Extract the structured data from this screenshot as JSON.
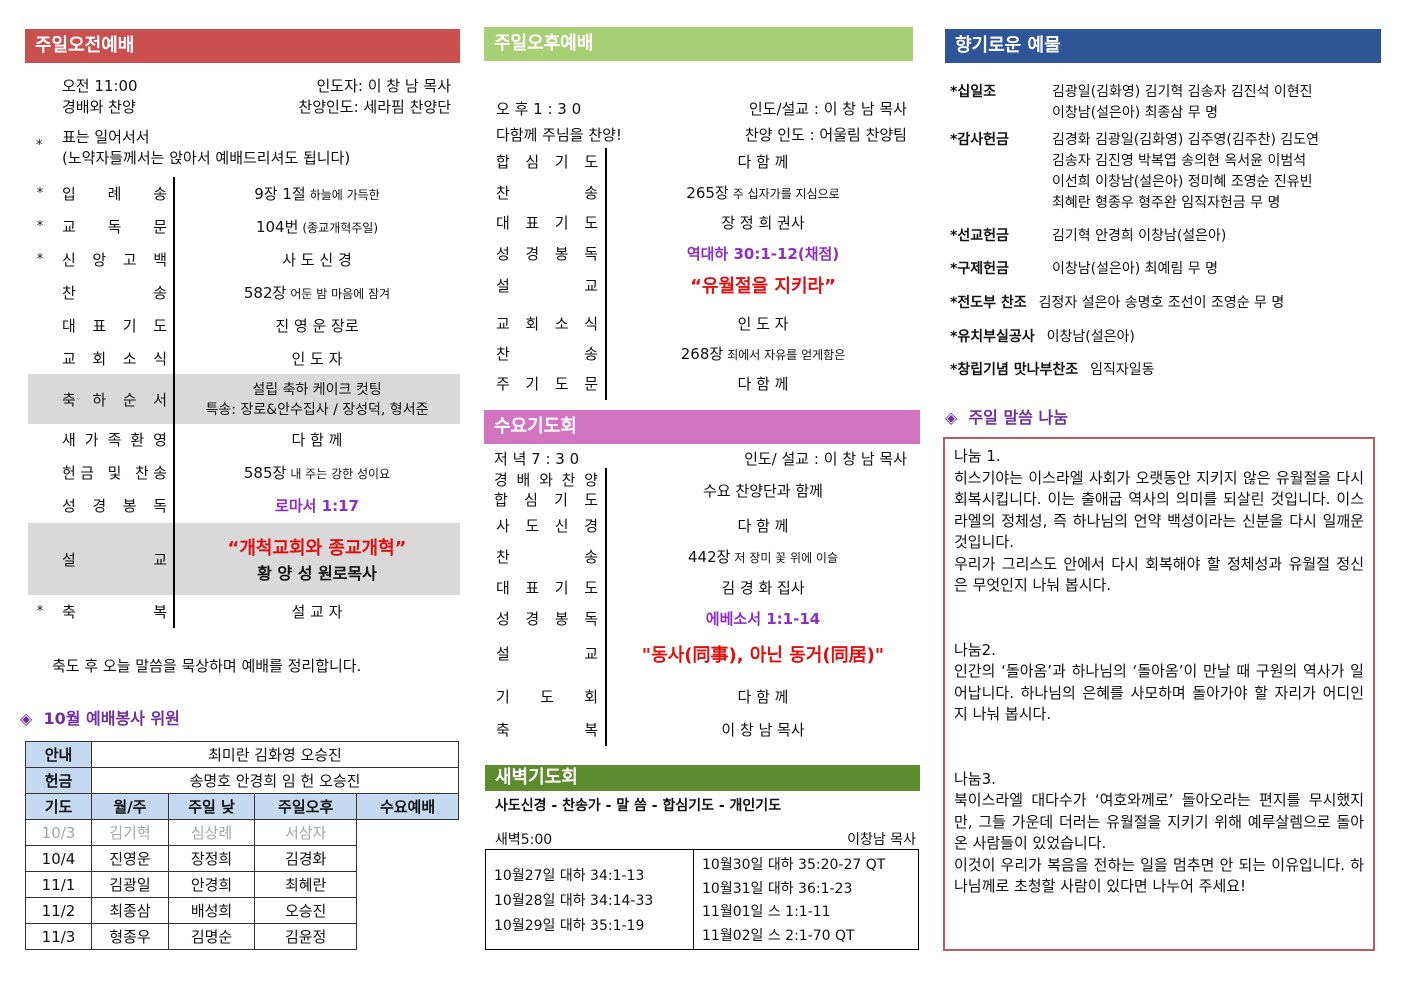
{
  "colors": {
    "morning": "#c9504f",
    "afternoon": "#a6d073",
    "offering": "#2f5597",
    "wednesday": "#d274bf",
    "dawn": "#5f8b2f",
    "accent": "#7030a0",
    "sermon": "#e01010",
    "reading": "#8e2fc4"
  },
  "morning": {
    "title": "주일오전예배",
    "time": "오전 11:00",
    "leader": "인도자: 이 창 남 목사",
    "sub": "경배와 찬양",
    "praise": "찬양인도: 세라핌 찬양단",
    "star_note_1": "표는 일어서서",
    "star_note_2": "(노약자들께서는 앉아서 예배드리셔도 됩니다)",
    "star": "*",
    "rows": [
      {
        "star": "*",
        "label": "입례송",
        "main": "9장 1절",
        "sub": "하늘에 가득한"
      },
      {
        "star": "*",
        "label": "교독문",
        "main": "104번",
        "sub": "(종교개혁주일)"
      },
      {
        "star": "*",
        "label": "신앙고백",
        "main": "사 도 신 경"
      },
      {
        "label": "찬송",
        "main": "582장",
        "sub": "어둔 밤 마음에 잠겨"
      },
      {
        "label": "대표기도",
        "main": "진 영 운 장로"
      },
      {
        "label": "교회소식",
        "main": "인 도 자"
      },
      {
        "label": "축하순서",
        "main": "설립 축하 케이크 컷팅",
        "main2": "특송: 장로&안수집사 / 장성덕, 형서준",
        "shade": true
      },
      {
        "label": "새가족환영",
        "main": "다 함 께"
      },
      {
        "label": "헌금 및 찬송",
        "main": "585장",
        "sub": "내 주는 강한 성이요"
      },
      {
        "label": "성경봉독",
        "main": "로마서 1:17",
        "style": "purple"
      },
      {
        "label": "설교",
        "main": "“개척교회와 종교개혁”",
        "main2": "황 양 성 원로목사",
        "style": "red",
        "shade": true
      },
      {
        "star": "*",
        "label": "축복",
        "main": "설 교 자"
      }
    ],
    "closing": "축도 후 오늘 말씀을 묵상하며 예배를 정리합니다."
  },
  "service": {
    "title": "10월 예배봉사 위원",
    "guide_label": "안내",
    "guide": "최미란 김화영 오승진",
    "offering_label": "헌금",
    "offering": "송명호 안경희 임 헌 오승진",
    "prayer_label": "기도",
    "headers": [
      "월/주",
      "주일 낮",
      "주일오후",
      "수요예배"
    ],
    "rows": [
      [
        "10/3",
        "김기혁",
        "심상례",
        "서삼자"
      ],
      [
        "10/4",
        "진영운",
        "장정희",
        "김경화"
      ],
      [
        "11/1",
        "김광일",
        "안경희",
        "최혜란"
      ],
      [
        "11/2",
        "최종삼",
        "배성희",
        "오승진"
      ],
      [
        "11/3",
        "형종우",
        "김명순",
        "김윤정"
      ]
    ]
  },
  "afternoon": {
    "title": "주일오후예배",
    "time": "오 후 1 : 3 0",
    "leader": "인도/설교 : 이 창 남 목사",
    "sub": "다함께 주님을 찬양!",
    "praise": "찬양 인도 : 어울림 찬양팀",
    "rows": [
      {
        "label": "합심기도",
        "main": "다 함 께"
      },
      {
        "label": "찬송",
        "main": "265장",
        "sub": "주 십자가를 지심으로"
      },
      {
        "label": "대표기도",
        "main": "장 정 희 권사"
      },
      {
        "label": "성경봉독",
        "main": "역대하 30:1-12(채점)",
        "style": "purple"
      },
      {
        "label": "설교",
        "main": "“유월절을 지키라”",
        "style": "red"
      },
      {
        "label": "교회소식",
        "main": "인 도 자"
      },
      {
        "label": "찬송",
        "main": "268장",
        "sub": "죄에서 자유를 얻게함은"
      },
      {
        "label": "주기도문",
        "main": "다 함 께"
      }
    ]
  },
  "wednesday": {
    "title": "수요기도회",
    "time": "저 녁 7 : 3 0",
    "leader": "인도/ 설교 : 이 창 남 목사",
    "label_a": "경배와찬양",
    "label_b": "합심기도",
    "main_ab": "수요 찬양단과 함께",
    "rows": [
      {
        "label": "사도신경",
        "main": "다 함 께"
      },
      {
        "label": "찬송",
        "main": "442장",
        "sub": "저 장미 꽃 위에 이슬"
      },
      {
        "label": "대표기도",
        "main": "김 경 화 집사"
      },
      {
        "label": "성경봉독",
        "main": "에베소서 1:1-14",
        "style": "purple"
      },
      {
        "label": "설교",
        "main": "\"동사(同事), 아닌 동거(同居)\"",
        "style": "red"
      },
      {
        "label": "기도회",
        "main": "다 함 께"
      },
      {
        "label": "축복",
        "main": "이 창 남 목사"
      }
    ]
  },
  "dawn": {
    "title": "새벽기도회",
    "order": "사도신경 - 찬송가 - 말 씀 - 합심기도 - 개인기도",
    "time": "새벽5:00",
    "leader": "이창남 목사",
    "left": [
      "10월27일 대하 34:1-13",
      "10월28일 대하 34:14-33",
      "10월29일 대하 35:1-19"
    ],
    "right": [
      "10월30일 대하 35:20-27 QT",
      "10월31일 대하 36:1-23",
      "11월01일 스 1:1-11",
      "11월02일 스 2:1-70 QT"
    ]
  },
  "offerings": {
    "title": "향기로운 예물",
    "items": [
      {
        "k": "*십일조",
        "v": [
          "김광일(김화영) 김기혁 김송자 김진석 이현진",
          "이창남(설은아)  최종삼 무  명"
        ]
      },
      {
        "k": "*감사헌금",
        "v": [
          "김경화 김광일(김화영) 김주영(김주찬) 김도연",
          "김송자 김진영 박복엽 송의현 옥서윤 이범석",
          "이선희 이창남(설은아) 정미혜 조영순 진유빈",
          "최혜란 형종우 형주완 임직자헌금     무  명"
        ]
      },
      {
        "k": "*선교헌금",
        "v": [
          "김기혁 안경희 이창남(설은아)"
        ]
      },
      {
        "k": "*구제헌금",
        "v": [
          "이창남(설은아) 최예림 무  명"
        ]
      },
      {
        "k": "*전도부 찬조",
        "v": [
          "김정자 설은아 송명호 조선이 조영순 무  명"
        ]
      },
      {
        "k": "*유치부실공사",
        "v": [
          "이창남(설은아)"
        ]
      },
      {
        "k": "*창립기념 맛나부찬조",
        "v": [
          "임직자일동"
        ]
      }
    ]
  },
  "sharing": {
    "title": "주일 말씀 나눔",
    "p1_title": "나눔 1.",
    "p1": "히스기야는 이스라엘 사회가 오랫동안 지키지 않은 유월절을 다시 회복시킵니다. 이는 출애굽 역사의 의미를 되살린 것입니다. 이스라엘의 정체성, 즉 하나님의 언약 백성이라는 신분을 다시 일깨운 것입니다.",
    "p1b": "우리가 그리스도 안에서 다시 회복해야 할 정체성과 유월절 정신은 무엇인지 나눠 봅시다.",
    "p2_title": "나눔2.",
    "p2": "인간의 ‘돌아옴’과 하나님의 ‘돌아옴’이 만날 때 구원의 역사가 일어납니다. 하나님의 은혜를 사모하며 돌아가야 할 자리가 어디인지 나눠 봅시다.",
    "p3_title": "나눔3.",
    "p3": "북이스라엘 대다수가 ‘여호와께로’ 돌아오라는 편지를 무시했지만, 그들 가운데 더러는 유월절을 지키기 위해 예루살렘으로 돌아온 사람들이 있었습니다.",
    "p3b": "이것이 우리가 복음을 전하는 일을 멈추면 안 되는 이유입니다. 하나님께로 초청할 사람이 있다면 나누어 주세요!"
  }
}
